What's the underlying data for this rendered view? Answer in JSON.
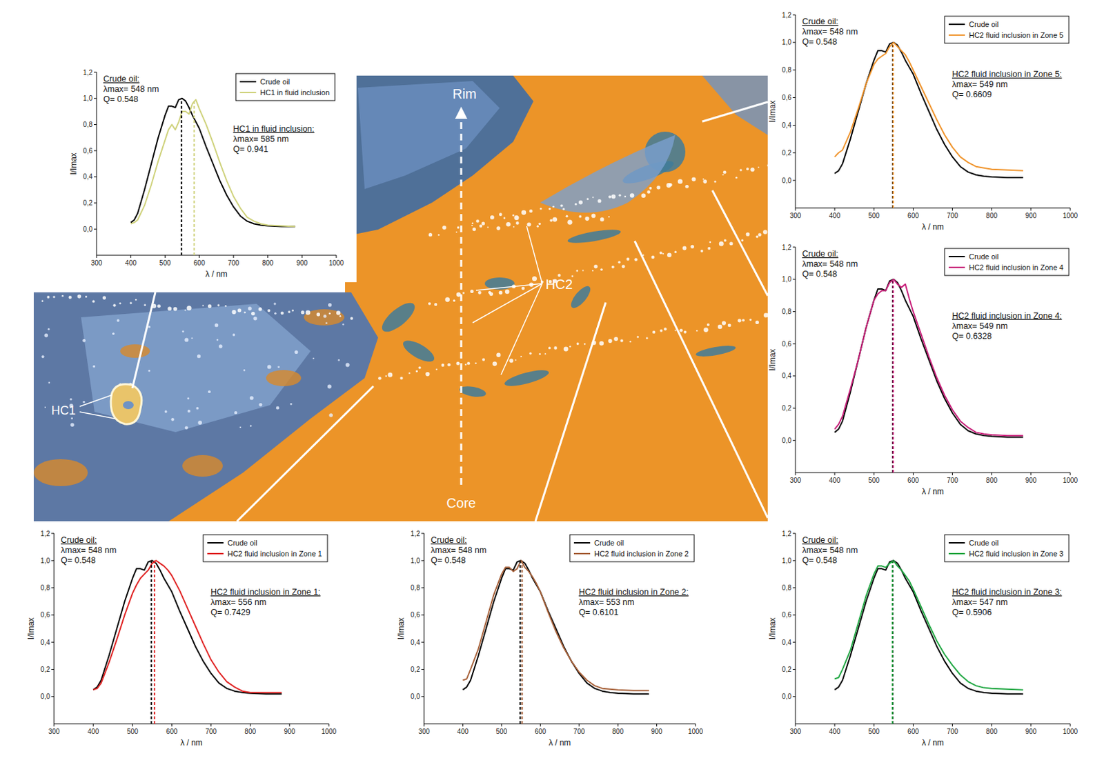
{
  "micrograph": {
    "labels": {
      "rim": "Rim",
      "core": "Core",
      "hc1": "HC1",
      "hc2": "HC2"
    }
  },
  "chart_data": [
    {
      "type": "line",
      "x_label": "λ / nm",
      "y_label": "I/Imax",
      "x": [
        400,
        410,
        420,
        440,
        460,
        480,
        500,
        510,
        520,
        530,
        540,
        550,
        560,
        570,
        580,
        590,
        600,
        620,
        640,
        660,
        680,
        700,
        720,
        740,
        760,
        780,
        800,
        840,
        880
      ],
      "xlim": [
        300,
        1000
      ],
      "xticks": [
        300,
        400,
        500,
        600,
        700,
        800,
        900,
        1000
      ],
      "ylim": [
        -0.2,
        1.2
      ],
      "yticks": [
        {
          "value": 0,
          "label": "0,0"
        },
        {
          "value": 0.2,
          "label": "0,2"
        },
        {
          "value": 0.4,
          "label": "0,4"
        },
        {
          "value": 0.6,
          "label": "0,6"
        },
        {
          "value": 0.8,
          "label": "0,8"
        },
        {
          "value": 1.0,
          "label": "1,0"
        },
        {
          "value": 1.2,
          "label": "1,2"
        }
      ],
      "legend": "upper right",
      "series": [
        {
          "name": "Crude oil",
          "color": "#000000",
          "lambda_max": 548,
          "values": [
            0.05,
            0.07,
            0.12,
            0.3,
            0.5,
            0.7,
            0.87,
            0.94,
            0.94,
            0.93,
            0.99,
            1.0,
            0.98,
            0.93,
            0.87,
            0.82,
            0.77,
            0.63,
            0.5,
            0.37,
            0.26,
            0.17,
            0.1,
            0.06,
            0.04,
            0.03,
            0.025,
            0.02,
            0.02
          ]
        },
        {
          "name": "HC1 in fluid inclusion",
          "color": "#cfd27c",
          "lambda_max": 585,
          "values": [
            0.04,
            0.05,
            0.07,
            0.18,
            0.34,
            0.52,
            0.68,
            0.76,
            0.8,
            0.76,
            0.82,
            0.9,
            0.9,
            0.88,
            0.96,
            0.99,
            0.92,
            0.8,
            0.66,
            0.51,
            0.37,
            0.25,
            0.16,
            0.09,
            0.06,
            0.04,
            0.03,
            0.025,
            0.02
          ]
        }
      ],
      "annotations": [
        {
          "title": "Crude oil:",
          "lines": [
            "λmax= 548 nm",
            "Q= 0.548"
          ]
        },
        {
          "title": "HC1 in fluid inclusion:",
          "lines": [
            "λmax= 585 nm",
            "Q= 0.941"
          ]
        }
      ]
    },
    {
      "type": "line",
      "x_label": "λ / nm",
      "y_label": "I/Imax",
      "x": [
        400,
        410,
        420,
        440,
        460,
        480,
        500,
        510,
        520,
        530,
        540,
        550,
        560,
        570,
        580,
        590,
        600,
        620,
        640,
        660,
        680,
        700,
        720,
        740,
        760,
        780,
        800,
        840,
        880
      ],
      "xlim": [
        300,
        1000
      ],
      "xticks": [
        300,
        400,
        500,
        600,
        700,
        800,
        900,
        1000
      ],
      "ylim": [
        -0.2,
        1.2
      ],
      "yticks": [
        {
          "value": 0,
          "label": "0,0"
        },
        {
          "value": 0.2,
          "label": "0,2"
        },
        {
          "value": 0.4,
          "label": "0,4"
        },
        {
          "value": 0.6,
          "label": "0,6"
        },
        {
          "value": 0.8,
          "label": "0,8"
        },
        {
          "value": 1.0,
          "label": "1,0"
        },
        {
          "value": 1.2,
          "label": "1,2"
        }
      ],
      "legend": "upper right",
      "series": [
        {
          "name": "Crude oil",
          "color": "#000000",
          "lambda_max": 548,
          "values": [
            0.05,
            0.07,
            0.12,
            0.3,
            0.5,
            0.7,
            0.87,
            0.94,
            0.94,
            0.93,
            0.99,
            1.0,
            0.98,
            0.93,
            0.87,
            0.82,
            0.77,
            0.63,
            0.5,
            0.37,
            0.26,
            0.17,
            0.1,
            0.06,
            0.04,
            0.03,
            0.025,
            0.02,
            0.02
          ]
        },
        {
          "name": "HC2 fluid inclusion in Zone 5",
          "color": "#f0952e",
          "lambda_max": 549,
          "values": [
            0.17,
            0.2,
            0.22,
            0.35,
            0.52,
            0.7,
            0.84,
            0.88,
            0.9,
            0.92,
            0.97,
            1.0,
            0.97,
            0.94,
            0.91,
            0.86,
            0.8,
            0.68,
            0.56,
            0.44,
            0.33,
            0.24,
            0.17,
            0.13,
            0.1,
            0.09,
            0.08,
            0.075,
            0.07
          ]
        }
      ],
      "annotations": [
        {
          "title": "Crude oil:",
          "lines": [
            "λmax= 548 nm",
            "Q= 0.548"
          ]
        },
        {
          "title": "HC2 fluid inclusion in Zone 5:",
          "lines": [
            "λmax= 549 nm",
            "Q= 0.6609"
          ]
        }
      ]
    },
    {
      "type": "line",
      "x_label": "λ / nm",
      "y_label": "I/Imax",
      "x": [
        400,
        410,
        420,
        440,
        460,
        480,
        500,
        510,
        520,
        530,
        540,
        550,
        560,
        570,
        580,
        590,
        600,
        620,
        640,
        660,
        680,
        700,
        720,
        740,
        760,
        780,
        800,
        840,
        880
      ],
      "xlim": [
        300,
        1000
      ],
      "xticks": [
        300,
        400,
        500,
        600,
        700,
        800,
        900,
        1000
      ],
      "ylim": [
        -0.2,
        1.2
      ],
      "yticks": [
        {
          "value": 0,
          "label": "0,0"
        },
        {
          "value": 0.2,
          "label": "0,2"
        },
        {
          "value": 0.4,
          "label": "0,4"
        },
        {
          "value": 0.6,
          "label": "0,6"
        },
        {
          "value": 0.8,
          "label": "0,8"
        },
        {
          "value": 1.0,
          "label": "1,0"
        },
        {
          "value": 1.2,
          "label": "1,2"
        }
      ],
      "legend": "upper right",
      "series": [
        {
          "name": "Crude oil",
          "color": "#000000",
          "lambda_max": 548,
          "values": [
            0.05,
            0.07,
            0.12,
            0.3,
            0.5,
            0.7,
            0.87,
            0.94,
            0.94,
            0.93,
            0.99,
            1.0,
            0.98,
            0.93,
            0.87,
            0.82,
            0.77,
            0.63,
            0.5,
            0.37,
            0.26,
            0.17,
            0.1,
            0.06,
            0.04,
            0.03,
            0.025,
            0.02,
            0.02
          ]
        },
        {
          "name": "HC2 fluid inclusion in Zone 4",
          "color": "#c8207a",
          "lambda_max": 549,
          "values": [
            0.07,
            0.1,
            0.15,
            0.32,
            0.5,
            0.7,
            0.87,
            0.91,
            0.93,
            0.93,
            0.98,
            1.0,
            0.97,
            0.95,
            0.97,
            0.88,
            0.8,
            0.66,
            0.52,
            0.39,
            0.28,
            0.19,
            0.12,
            0.08,
            0.05,
            0.04,
            0.035,
            0.03,
            0.03
          ]
        }
      ],
      "annotations": [
        {
          "title": "Crude oil:",
          "lines": [
            "λmax= 548 nm",
            "Q= 0.548"
          ]
        },
        {
          "title": "HC2 fluid inclusion in Zone 4:",
          "lines": [
            "λmax= 549 nm",
            "Q= 0.6328"
          ]
        }
      ]
    },
    {
      "type": "line",
      "x_label": "λ / nm",
      "y_label": "I/Imax",
      "x": [
        400,
        410,
        420,
        440,
        460,
        480,
        500,
        510,
        520,
        530,
        540,
        550,
        560,
        570,
        580,
        590,
        600,
        620,
        640,
        660,
        680,
        700,
        720,
        740,
        760,
        780,
        800,
        840,
        880
      ],
      "xlim": [
        300,
        1000
      ],
      "xticks": [
        300,
        400,
        500,
        600,
        700,
        800,
        900,
        1000
      ],
      "ylim": [
        -0.2,
        1.2
      ],
      "yticks": [
        {
          "value": 0,
          "label": "0,0"
        },
        {
          "value": 0.2,
          "label": "0,2"
        },
        {
          "value": 0.4,
          "label": "0,4"
        },
        {
          "value": 0.6,
          "label": "0,6"
        },
        {
          "value": 0.8,
          "label": "0,8"
        },
        {
          "value": 1.0,
          "label": "1,0"
        },
        {
          "value": 1.2,
          "label": "1,2"
        }
      ],
      "legend": "upper right",
      "series": [
        {
          "name": "Crude oil",
          "color": "#000000",
          "lambda_max": 548,
          "values": [
            0.05,
            0.07,
            0.12,
            0.3,
            0.5,
            0.7,
            0.87,
            0.94,
            0.94,
            0.93,
            0.99,
            1.0,
            0.98,
            0.93,
            0.87,
            0.82,
            0.77,
            0.63,
            0.5,
            0.37,
            0.26,
            0.17,
            0.1,
            0.06,
            0.04,
            0.03,
            0.025,
            0.02,
            0.02
          ]
        },
        {
          "name": "HC2 fluid inclusion in Zone 1",
          "color": "#e02424",
          "lambda_max": 556,
          "values": [
            0.05,
            0.06,
            0.1,
            0.25,
            0.42,
            0.6,
            0.76,
            0.82,
            0.87,
            0.9,
            0.93,
            0.98,
            1.0,
            0.98,
            0.96,
            0.93,
            0.89,
            0.78,
            0.65,
            0.52,
            0.39,
            0.27,
            0.18,
            0.11,
            0.07,
            0.04,
            0.03,
            0.03,
            0.03
          ]
        }
      ],
      "annotations": [
        {
          "title": "Crude oil:",
          "lines": [
            "λmax= 548 nm",
            "Q= 0.548"
          ]
        },
        {
          "title": "HC2  fluid inclusion in Zone 1:",
          "lines": [
            "λmax= 556 nm",
            "Q= 0.7429"
          ]
        }
      ]
    },
    {
      "type": "line",
      "x_label": "λ / nm",
      "y_label": "I/Imax",
      "x": [
        400,
        410,
        420,
        440,
        460,
        480,
        500,
        510,
        520,
        530,
        540,
        550,
        560,
        570,
        580,
        590,
        600,
        620,
        640,
        660,
        680,
        700,
        720,
        740,
        760,
        780,
        800,
        840,
        880
      ],
      "xlim": [
        300,
        1000
      ],
      "xticks": [
        300,
        400,
        500,
        600,
        700,
        800,
        900,
        1000
      ],
      "ylim": [
        -0.2,
        1.2
      ],
      "yticks": [
        {
          "value": 0,
          "label": "0,0"
        },
        {
          "value": 0.2,
          "label": "0,2"
        },
        {
          "value": 0.4,
          "label": "0,4"
        },
        {
          "value": 0.6,
          "label": "0,6"
        },
        {
          "value": 0.8,
          "label": "0,8"
        },
        {
          "value": 1.0,
          "label": "1,0"
        },
        {
          "value": 1.2,
          "label": "1,2"
        }
      ],
      "legend": "upper right",
      "series": [
        {
          "name": "Crude oil",
          "color": "#000000",
          "lambda_max": 548,
          "values": [
            0.05,
            0.07,
            0.12,
            0.3,
            0.5,
            0.7,
            0.87,
            0.94,
            0.94,
            0.93,
            0.99,
            1.0,
            0.98,
            0.93,
            0.87,
            0.82,
            0.77,
            0.63,
            0.5,
            0.37,
            0.26,
            0.17,
            0.1,
            0.06,
            0.04,
            0.03,
            0.025,
            0.02,
            0.02
          ]
        },
        {
          "name": "HC2 fluid inclusion in Zone 2",
          "color": "#a8633c",
          "lambda_max": 553,
          "values": [
            0.12,
            0.13,
            0.2,
            0.35,
            0.55,
            0.75,
            0.9,
            0.95,
            0.95,
            0.92,
            0.94,
            1.0,
            0.95,
            0.92,
            0.88,
            0.83,
            0.77,
            0.62,
            0.48,
            0.36,
            0.26,
            0.18,
            0.12,
            0.08,
            0.06,
            0.055,
            0.05,
            0.045,
            0.045
          ]
        }
      ],
      "annotations": [
        {
          "title": "Crude oil:",
          "lines": [
            "λmax= 548 nm",
            "Q= 0.548"
          ]
        },
        {
          "title": "HC2 fluid inclusion in Zone 2:",
          "lines": [
            "λmax= 553 nm",
            "Q= 0.6101"
          ]
        }
      ]
    },
    {
      "type": "line",
      "x_label": "λ / nm",
      "y_label": "I/Imax",
      "x": [
        400,
        410,
        420,
        440,
        460,
        480,
        500,
        510,
        520,
        530,
        540,
        550,
        560,
        570,
        580,
        590,
        600,
        620,
        640,
        660,
        680,
        700,
        720,
        740,
        760,
        780,
        800,
        840,
        880
      ],
      "xlim": [
        300,
        1000
      ],
      "xticks": [
        300,
        400,
        500,
        600,
        700,
        800,
        900,
        1000
      ],
      "ylim": [
        -0.2,
        1.2
      ],
      "yticks": [
        {
          "value": 0,
          "label": "0,0"
        },
        {
          "value": 0.2,
          "label": "0,2"
        },
        {
          "value": 0.4,
          "label": "0,4"
        },
        {
          "value": 0.6,
          "label": "0,6"
        },
        {
          "value": 0.8,
          "label": "0,8"
        },
        {
          "value": 1.0,
          "label": "1,0"
        },
        {
          "value": 1.2,
          "label": "1,2"
        }
      ],
      "legend": "upper right",
      "series": [
        {
          "name": "Crude oil",
          "color": "#000000",
          "lambda_max": 548,
          "values": [
            0.05,
            0.07,
            0.12,
            0.3,
            0.5,
            0.7,
            0.87,
            0.94,
            0.94,
            0.93,
            0.99,
            1.0,
            0.98,
            0.93,
            0.87,
            0.82,
            0.77,
            0.63,
            0.5,
            0.37,
            0.26,
            0.17,
            0.1,
            0.06,
            0.04,
            0.03,
            0.025,
            0.02,
            0.02
          ]
        },
        {
          "name": "HC2 fluid inclusion in Zone 3",
          "color": "#22a844",
          "lambda_max": 547,
          "values": [
            0.13,
            0.14,
            0.2,
            0.34,
            0.54,
            0.74,
            0.9,
            0.96,
            0.96,
            0.95,
            0.98,
            1.0,
            0.96,
            0.93,
            0.89,
            0.85,
            0.79,
            0.66,
            0.53,
            0.41,
            0.31,
            0.23,
            0.16,
            0.11,
            0.08,
            0.065,
            0.06,
            0.055,
            0.05
          ]
        }
      ],
      "annotations": [
        {
          "title": "Crude oil:",
          "lines": [
            "λmax= 548 nm",
            "Q= 0.548"
          ]
        },
        {
          "title": "HC2 fluid inclusion in Zone 3:",
          "lines": [
            "λmax= 547 nm",
            "Q= 0.5906"
          ]
        }
      ]
    }
  ]
}
